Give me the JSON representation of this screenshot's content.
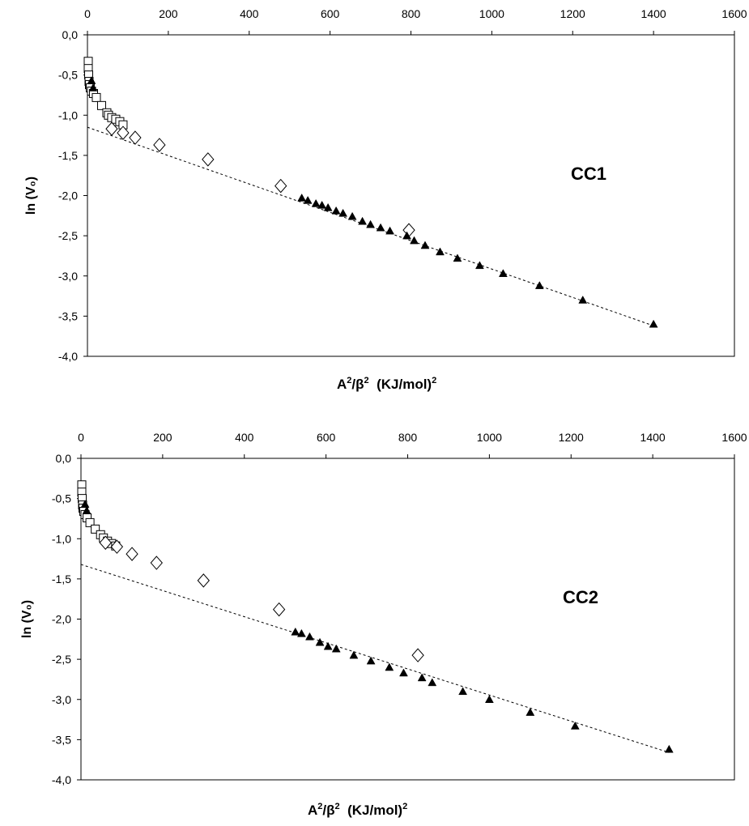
{
  "chart_data": [
    {
      "type": "scatter",
      "panel_label": "CC1",
      "xlabel": "A²/β²  (KJ/mol)²",
      "ylabel": "ln (V₀)",
      "xlim": [
        0,
        1600
      ],
      "ylim": [
        -4.0,
        0.0
      ],
      "x_ticks": [
        "0",
        "200",
        "400",
        "600",
        "800",
        "1000",
        "1200",
        "1400",
        "1600"
      ],
      "y_ticks": [
        "0,0",
        "-0,5",
        "-1,0",
        "-1,5",
        "-2,0",
        "-2,5",
        "-3,0",
        "-3,5",
        "-4,0"
      ],
      "x_axis_position": "top",
      "grid": false,
      "fit_line": {
        "x": [
          0,
          1400
        ],
        "y": [
          -1.15,
          -3.62
        ],
        "style": "dashed"
      },
      "series": [
        {
          "marker": "square-open",
          "points": [
            [
              2,
              -0.33
            ],
            [
              2,
              -0.42
            ],
            [
              3,
              -0.5
            ],
            [
              4,
              -0.58
            ],
            [
              5,
              -0.62
            ],
            [
              7,
              -0.66
            ],
            [
              10,
              -0.7
            ],
            [
              15,
              -0.73
            ],
            [
              22,
              -0.78
            ],
            [
              35,
              -0.88
            ],
            [
              48,
              -0.97
            ],
            [
              52,
              -1.0
            ],
            [
              60,
              -1.03
            ],
            [
              70,
              -1.05
            ],
            [
              80,
              -1.08
            ],
            [
              88,
              -1.12
            ]
          ]
        },
        {
          "marker": "diamond-open",
          "points": [
            [
              60,
              -1.17
            ],
            [
              88,
              -1.22
            ],
            [
              118,
              -1.28
            ],
            [
              178,
              -1.37
            ],
            [
              298,
              -1.55
            ],
            [
              478,
              -1.88
            ],
            [
              795,
              -2.43
            ]
          ]
        },
        {
          "marker": "triangle-filled",
          "points": [
            [
              10,
              -0.57
            ],
            [
              14,
              -0.66
            ],
            [
              530,
              -2.03
            ],
            [
              545,
              -2.06
            ],
            [
              565,
              -2.1
            ],
            [
              580,
              -2.12
            ],
            [
              595,
              -2.15
            ],
            [
              615,
              -2.19
            ],
            [
              632,
              -2.22
            ],
            [
              655,
              -2.26
            ],
            [
              680,
              -2.32
            ],
            [
              700,
              -2.36
            ],
            [
              725,
              -2.4
            ],
            [
              748,
              -2.44
            ],
            [
              790,
              -2.5
            ],
            [
              808,
              -2.56
            ],
            [
              835,
              -2.62
            ],
            [
              872,
              -2.7
            ],
            [
              915,
              -2.78
            ],
            [
              970,
              -2.87
            ],
            [
              1028,
              -2.97
            ],
            [
              1118,
              -3.12
            ],
            [
              1225,
              -3.3
            ],
            [
              1400,
              -3.6
            ]
          ]
        }
      ]
    },
    {
      "type": "scatter",
      "panel_label": "CC2",
      "xlabel": "A²/β²  (KJ/mol)²",
      "ylabel": "ln (V₀)",
      "xlim": [
        0,
        1600
      ],
      "ylim": [
        -4.0,
        0.0
      ],
      "x_ticks": [
        "0",
        "200",
        "400",
        "600",
        "800",
        "1000",
        "1200",
        "1400",
        "1600"
      ],
      "y_ticks": [
        "0,0",
        "-0,5",
        "-1,0",
        "-1,5",
        "-2,0",
        "-2,5",
        "-3,0",
        "-3,5",
        "-4,0"
      ],
      "x_axis_position": "top",
      "grid": false,
      "fit_line": {
        "x": [
          0,
          1440
        ],
        "y": [
          -1.32,
          -3.66
        ],
        "style": "dashed"
      },
      "series": [
        {
          "marker": "square-open",
          "points": [
            [
              2,
              -0.33
            ],
            [
              2,
              -0.42
            ],
            [
              3,
              -0.5
            ],
            [
              4,
              -0.58
            ],
            [
              5,
              -0.62
            ],
            [
              7,
              -0.66
            ],
            [
              10,
              -0.7
            ],
            [
              15,
              -0.74
            ],
            [
              22,
              -0.8
            ],
            [
              35,
              -0.88
            ],
            [
              48,
              -0.95
            ],
            [
              55,
              -0.99
            ],
            [
              65,
              -1.03
            ],
            [
              75,
              -1.06
            ],
            [
              85,
              -1.09
            ]
          ]
        },
        {
          "marker": "diamond-open",
          "points": [
            [
              60,
              -1.05
            ],
            [
              88,
              -1.1
            ],
            [
              125,
              -1.19
            ],
            [
              185,
              -1.3
            ],
            [
              300,
              -1.52
            ],
            [
              485,
              -1.88
            ],
            [
              825,
              -2.45
            ]
          ]
        },
        {
          "marker": "triangle-filled",
          "points": [
            [
              10,
              -0.57
            ],
            [
              14,
              -0.65
            ],
            [
              525,
              -2.16
            ],
            [
              540,
              -2.18
            ],
            [
              560,
              -2.22
            ],
            [
              585,
              -2.29
            ],
            [
              605,
              -2.34
            ],
            [
              625,
              -2.37
            ],
            [
              668,
              -2.45
            ],
            [
              710,
              -2.52
            ],
            [
              755,
              -2.6
            ],
            [
              790,
              -2.67
            ],
            [
              835,
              -2.73
            ],
            [
              860,
              -2.79
            ],
            [
              935,
              -2.9
            ],
            [
              1000,
              -3.0
            ],
            [
              1100,
              -3.16
            ],
            [
              1210,
              -3.33
            ],
            [
              1440,
              -3.62
            ]
          ]
        }
      ]
    }
  ]
}
